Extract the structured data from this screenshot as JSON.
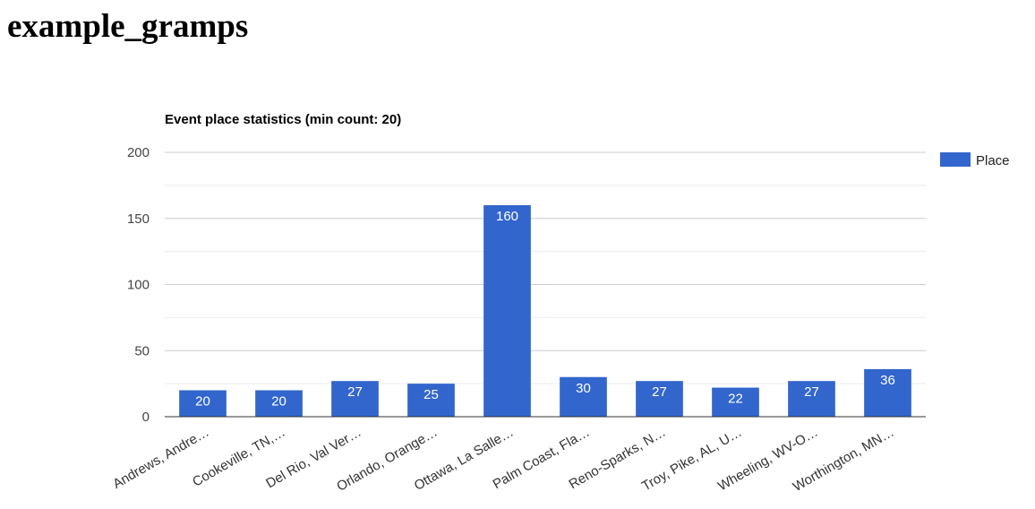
{
  "page": {
    "title": "example_gramps"
  },
  "colors": {
    "bar": "#3366cc",
    "grid": "#cccccc",
    "minor_grid": "#ebebeb",
    "axis": "#333333",
    "tick_text": "#444444",
    "title_text": "#000000",
    "bar_label_text": "#ffffff"
  },
  "chart_data": {
    "type": "bar",
    "title": "Event place statistics (min count: 20)",
    "xlabel": "",
    "ylabel": "",
    "ylim": [
      0,
      200
    ],
    "yticks": [
      0,
      50,
      100,
      150,
      200
    ],
    "grid": true,
    "legend_position": "right",
    "categories": [
      "Andrews, Andre…",
      "Cookeville, TN,…",
      "Del Rio, Val Ver…",
      "Orlando, Orange…",
      "Ottawa, La Salle…",
      "Palm Coast, Fla…",
      "Reno-Sparks, N…",
      "Troy, Pike, AL, U…",
      "Wheeling, WV-O…",
      "Worthington, MN…"
    ],
    "series": [
      {
        "name": "Place",
        "values": [
          20,
          20,
          27,
          25,
          160,
          30,
          27,
          22,
          27,
          36
        ]
      }
    ]
  }
}
